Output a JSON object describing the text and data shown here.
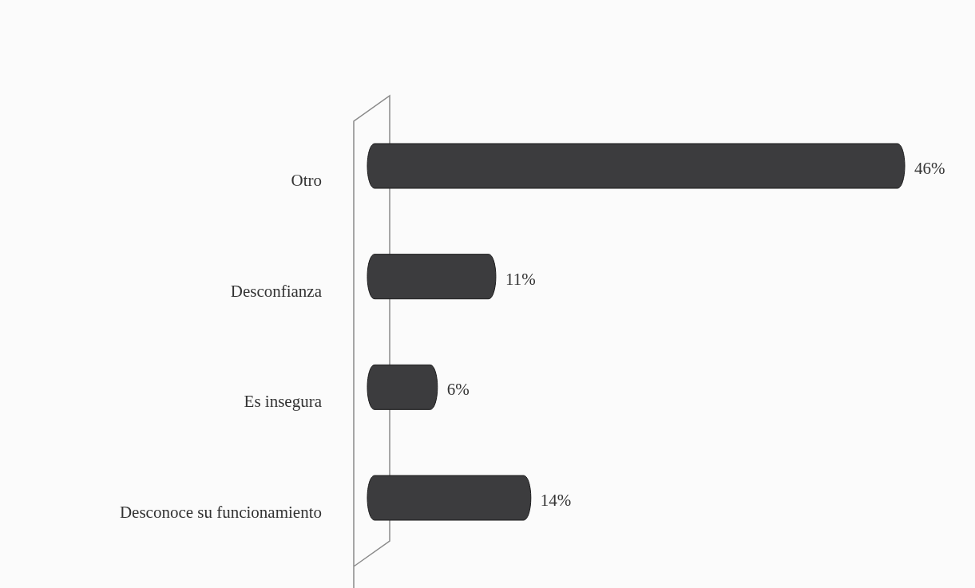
{
  "chart_data": {
    "type": "bar",
    "orientation": "horizontal",
    "categories": [
      "Otro",
      "Desconfianza",
      "Es insegura",
      "Desconoce su funcionamiento"
    ],
    "values": [
      46,
      11,
      6,
      14
    ],
    "value_labels": [
      "46%",
      "11%",
      "6%",
      "14%"
    ],
    "color": "#3c3c3e",
    "tick_labels": "y"
  }
}
